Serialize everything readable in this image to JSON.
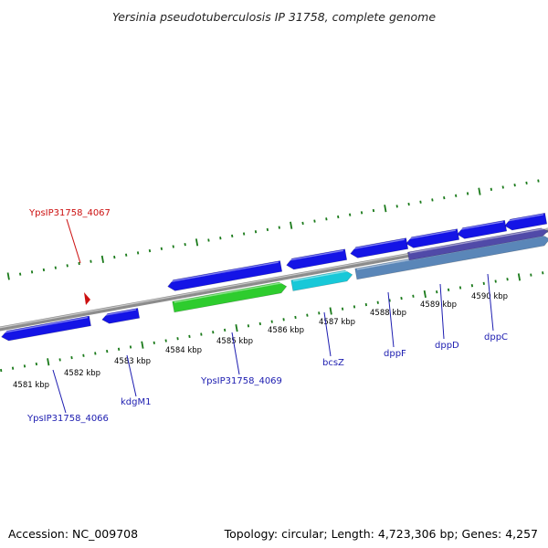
{
  "title": "Yersinia pseudotuberculosis IP 31758, complete genome",
  "footer": {
    "accession": "Accession: NC_009708",
    "stats": "Topology: circular; Length: 4,723,306 bp; Genes: 4,257"
  },
  "colors": {
    "backbone": "#8c8c8c",
    "tick": "#1a7a1a",
    "gene_blue": "#1414e6",
    "gene_green": "#2ecc2e",
    "gene_cyan": "#18c8d8",
    "gene_steel": "#5a86b8",
    "gene_purple": "#504aa8",
    "label_blue": "#1c1cb0",
    "label_red": "#cc1010"
  },
  "tick_labels": [
    "4581 kbp",
    "4582 kbp",
    "4583 kbp",
    "4584 kbp",
    "4585 kbp",
    "4586 kbp",
    "4587 kbp",
    "4588 kbp",
    "4589 kbp",
    "4590 kbp"
  ],
  "gene_labels": {
    "red": "YpsIP31758_4067",
    "g4066": "YpsIP31758_4066",
    "kdgM1": "kdgM1",
    "g4069": "YpsIP31758_4069",
    "bcsZ": "bcsZ",
    "dppF": "dppF",
    "dppD": "dppD",
    "dppC": "dppC"
  }
}
